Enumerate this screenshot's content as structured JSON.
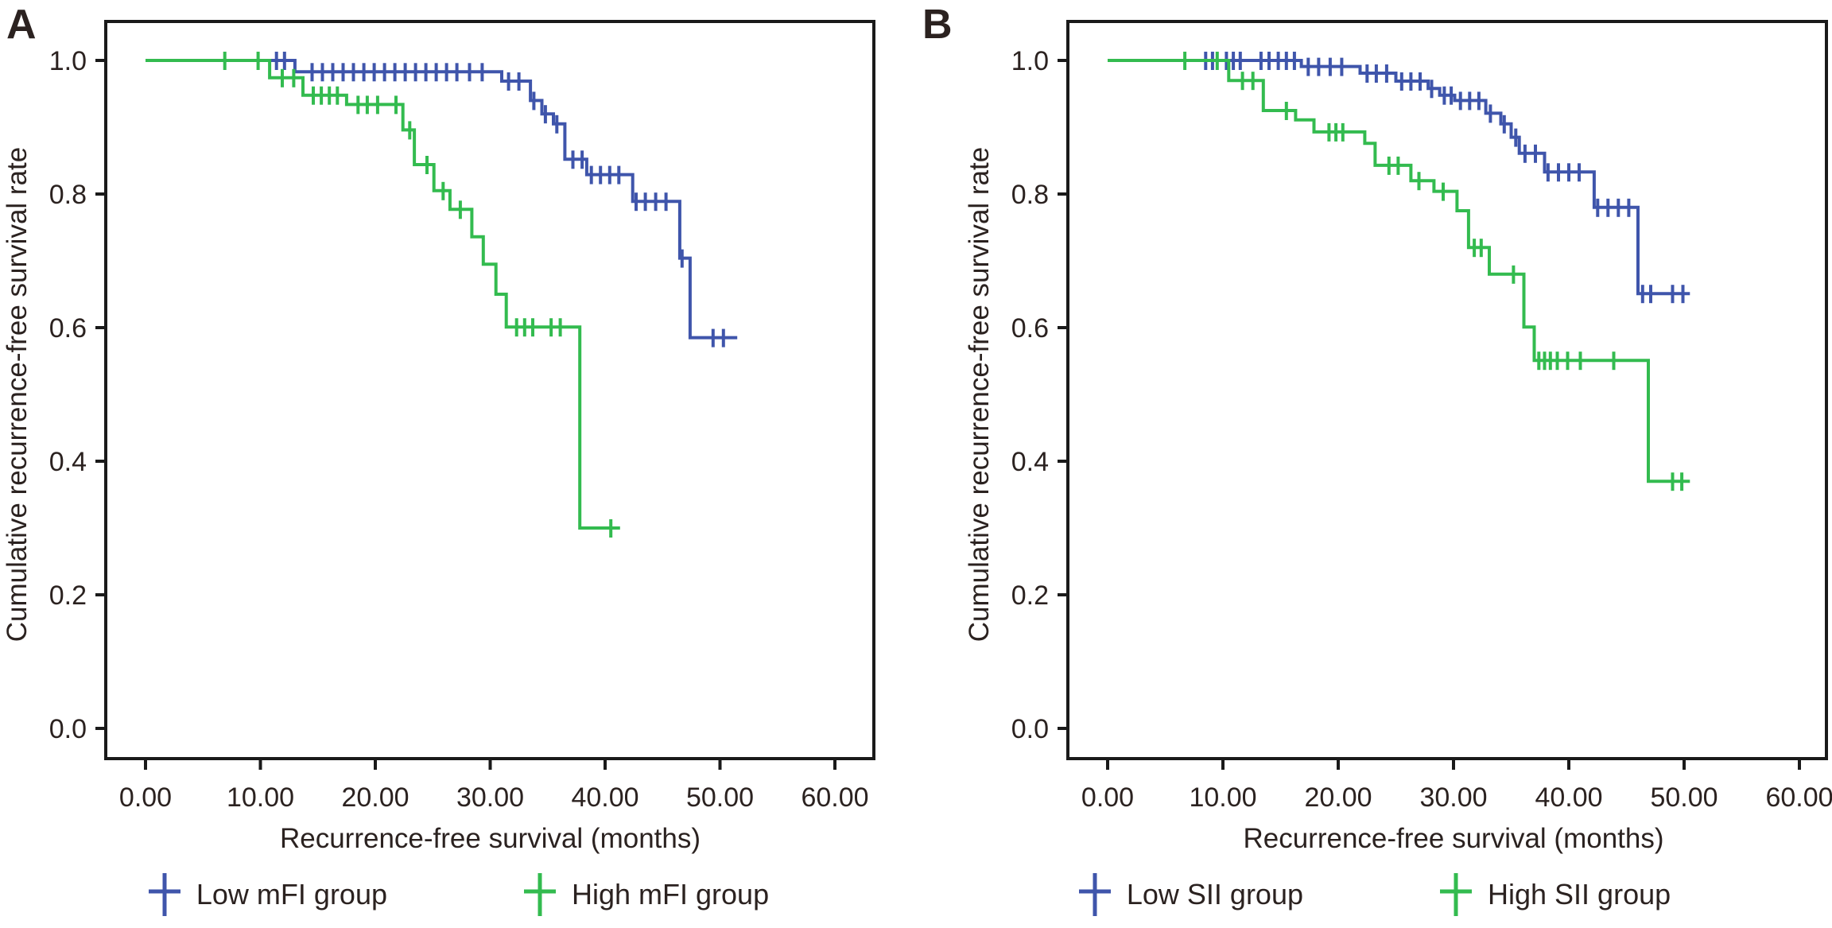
{
  "figure": {
    "background": "#FFFFFF",
    "panel_letters": [
      "A",
      "B"
    ]
  },
  "colors": {
    "blue": "#3F55AB",
    "green": "#33BB4F",
    "axis": "#1A1A1A",
    "text": "#2B2220"
  },
  "chart_data": [
    {
      "type": "line",
      "subtype": "kaplan-meier-step",
      "panel_label": "A",
      "title": "",
      "xlabel": "Recurrence-free survival (months)",
      "ylabel": "Cumulative recurrence-free survival rate",
      "xlim": [
        -3.5,
        63.5
      ],
      "ylim": [
        -0.09,
        1.1
      ],
      "grid": false,
      "legend_position": "bottom",
      "xticks": {
        "values": [
          0,
          10,
          20,
          30,
          40,
          50,
          60
        ],
        "labels": [
          "0.00",
          "10.00",
          "20.00",
          "30.00",
          "40.00",
          "50.00",
          "60.00"
        ]
      },
      "yticks": {
        "values": [
          1.0,
          0.8,
          0.6,
          0.4,
          0.2,
          0.0
        ],
        "labels": [
          "1.0",
          "0.8",
          "0.6",
          "0.4",
          "0.2",
          "0.0"
        ]
      },
      "series": [
        {
          "name": "Low mFI group",
          "color": "#3F55AB",
          "start": [
            0,
            1.0
          ],
          "end_time": 51.5,
          "steps": [
            [
              13.0,
              0.983
            ],
            [
              31.0,
              0.969
            ],
            [
              33.5,
              0.94
            ],
            [
              34.5,
              0.92
            ],
            [
              35.5,
              0.905
            ],
            [
              36.5,
              0.852
            ],
            [
              38.4,
              0.829
            ],
            [
              42.4,
              0.789
            ],
            [
              46.5,
              0.704
            ],
            [
              47.4,
              0.585
            ]
          ],
          "censors": [
            [
              11.4,
              1.0
            ],
            [
              12.1,
              1.0
            ],
            [
              14.5,
              0.983
            ],
            [
              15.4,
              0.983
            ],
            [
              16.3,
              0.983
            ],
            [
              17.2,
              0.983
            ],
            [
              18.1,
              0.983
            ],
            [
              19.0,
              0.983
            ],
            [
              19.9,
              0.983
            ],
            [
              20.8,
              0.983
            ],
            [
              21.7,
              0.983
            ],
            [
              22.6,
              0.983
            ],
            [
              23.5,
              0.983
            ],
            [
              24.4,
              0.983
            ],
            [
              25.3,
              0.983
            ],
            [
              26.2,
              0.983
            ],
            [
              27.1,
              0.983
            ],
            [
              28.2,
              0.983
            ],
            [
              29.3,
              0.983
            ],
            [
              31.6,
              0.969
            ],
            [
              32.5,
              0.969
            ],
            [
              33.8,
              0.94
            ],
            [
              34.8,
              0.92
            ],
            [
              35.8,
              0.905
            ],
            [
              37.2,
              0.852
            ],
            [
              38.0,
              0.852
            ],
            [
              38.8,
              0.829
            ],
            [
              39.6,
              0.829
            ],
            [
              40.4,
              0.829
            ],
            [
              41.2,
              0.829
            ],
            [
              42.7,
              0.789
            ],
            [
              43.5,
              0.789
            ],
            [
              44.4,
              0.789
            ],
            [
              45.3,
              0.789
            ],
            [
              46.7,
              0.704
            ],
            [
              49.4,
              0.585
            ],
            [
              50.3,
              0.585
            ]
          ]
        },
        {
          "name": "High mFI group",
          "color": "#33BB4F",
          "start": [
            0,
            1.0
          ],
          "end_time": 41.3,
          "steps": [
            [
              10.8,
              0.974
            ],
            [
              13.7,
              0.948
            ],
            [
              17.5,
              0.934
            ],
            [
              22.4,
              0.896
            ],
            [
              23.4,
              0.844
            ],
            [
              25.1,
              0.805
            ],
            [
              26.5,
              0.777
            ],
            [
              28.4,
              0.736
            ],
            [
              29.4,
              0.695
            ],
            [
              30.5,
              0.65
            ],
            [
              31.4,
              0.601
            ],
            [
              37.8,
              0.3
            ]
          ],
          "censors": [
            [
              6.9,
              1.0
            ],
            [
              9.8,
              1.0
            ],
            [
              11.9,
              0.974
            ],
            [
              12.9,
              0.974
            ],
            [
              14.6,
              0.948
            ],
            [
              15.3,
              0.948
            ],
            [
              16.0,
              0.948
            ],
            [
              16.7,
              0.948
            ],
            [
              18.5,
              0.934
            ],
            [
              19.3,
              0.934
            ],
            [
              20.2,
              0.934
            ],
            [
              21.8,
              0.934
            ],
            [
              23.0,
              0.896
            ],
            [
              24.5,
              0.844
            ],
            [
              25.9,
              0.805
            ],
            [
              27.4,
              0.777
            ],
            [
              32.3,
              0.601
            ],
            [
              33.0,
              0.601
            ],
            [
              33.7,
              0.601
            ],
            [
              35.3,
              0.601
            ],
            [
              36.1,
              0.601
            ],
            [
              40.5,
              0.3
            ]
          ]
        }
      ]
    },
    {
      "type": "line",
      "subtype": "kaplan-meier-step",
      "panel_label": "B",
      "title": "",
      "xlabel": "Recurrence-free survival (months)",
      "ylabel": "Cumulative recurrence-free survival rate",
      "xlim": [
        -3.5,
        63.5
      ],
      "ylim": [
        -0.09,
        1.1
      ],
      "grid": false,
      "legend_position": "bottom",
      "xticks": {
        "values": [
          0,
          10,
          20,
          30,
          40,
          50,
          60
        ],
        "labels": [
          "0.00",
          "10.00",
          "20.00",
          "30.00",
          "40.00",
          "50.00",
          "60.00"
        ]
      },
      "yticks": {
        "values": [
          1.0,
          0.8,
          0.6,
          0.4,
          0.2,
          0.0
        ],
        "labels": [
          "1.0",
          "0.8",
          "0.6",
          "0.4",
          "0.2",
          "0.0"
        ]
      },
      "series": [
        {
          "name": "Low SII group",
          "color": "#3F55AB",
          "start": [
            0,
            1.0
          ],
          "end_time": 50.5,
          "steps": [
            [
              16.8,
              0.991
            ],
            [
              21.9,
              0.981
            ],
            [
              25.0,
              0.969
            ],
            [
              27.8,
              0.958
            ],
            [
              28.8,
              0.948
            ],
            [
              30.1,
              0.94
            ],
            [
              32.8,
              0.921
            ],
            [
              34.1,
              0.905
            ],
            [
              35.0,
              0.885
            ],
            [
              35.7,
              0.861
            ],
            [
              37.9,
              0.833
            ],
            [
              42.2,
              0.78
            ],
            [
              46.0,
              0.651
            ]
          ],
          "censors": [
            [
              8.5,
              1.0
            ],
            [
              9.1,
              1.0
            ],
            [
              10.3,
              1.0
            ],
            [
              10.9,
              1.0
            ],
            [
              11.5,
              1.0
            ],
            [
              13.3,
              1.0
            ],
            [
              14.0,
              1.0
            ],
            [
              14.8,
              1.0
            ],
            [
              15.5,
              1.0
            ],
            [
              16.2,
              1.0
            ],
            [
              17.4,
              0.991
            ],
            [
              18.3,
              0.991
            ],
            [
              19.3,
              0.991
            ],
            [
              20.3,
              0.991
            ],
            [
              22.5,
              0.981
            ],
            [
              23.3,
              0.981
            ],
            [
              24.2,
              0.981
            ],
            [
              25.5,
              0.969
            ],
            [
              26.3,
              0.969
            ],
            [
              27.1,
              0.969
            ],
            [
              28.1,
              0.958
            ],
            [
              29.2,
              0.948
            ],
            [
              29.8,
              0.948
            ],
            [
              30.6,
              0.94
            ],
            [
              31.4,
              0.94
            ],
            [
              32.2,
              0.94
            ],
            [
              33.2,
              0.921
            ],
            [
              34.4,
              0.905
            ],
            [
              35.4,
              0.885
            ],
            [
              36.2,
              0.861
            ],
            [
              37.1,
              0.861
            ],
            [
              38.2,
              0.833
            ],
            [
              39.1,
              0.833
            ],
            [
              40.0,
              0.833
            ],
            [
              40.9,
              0.833
            ],
            [
              42.5,
              0.78
            ],
            [
              43.4,
              0.78
            ],
            [
              44.3,
              0.78
            ],
            [
              45.2,
              0.78
            ],
            [
              46.4,
              0.651
            ],
            [
              47.1,
              0.651
            ],
            [
              49.0,
              0.651
            ],
            [
              49.9,
              0.651
            ]
          ]
        },
        {
          "name": "High SII group",
          "color": "#33BB4F",
          "start": [
            0,
            1.0
          ],
          "end_time": 50.5,
          "steps": [
            [
              10.5,
              0.97
            ],
            [
              13.5,
              0.925
            ],
            [
              16.3,
              0.911
            ],
            [
              17.9,
              0.893
            ],
            [
              22.3,
              0.876
            ],
            [
              23.2,
              0.843
            ],
            [
              26.3,
              0.82
            ],
            [
              28.3,
              0.804
            ],
            [
              30.3,
              0.775
            ],
            [
              31.3,
              0.72
            ],
            [
              33.1,
              0.68
            ],
            [
              36.1,
              0.601
            ],
            [
              37.0,
              0.551
            ],
            [
              46.9,
              0.37
            ]
          ],
          "censors": [
            [
              6.7,
              1.0
            ],
            [
              9.5,
              1.0
            ],
            [
              11.7,
              0.97
            ],
            [
              12.6,
              0.97
            ],
            [
              15.5,
              0.925
            ],
            [
              19.2,
              0.893
            ],
            [
              19.8,
              0.893
            ],
            [
              20.4,
              0.893
            ],
            [
              24.4,
              0.843
            ],
            [
              25.2,
              0.843
            ],
            [
              27.0,
              0.82
            ],
            [
              29.1,
              0.804
            ],
            [
              31.8,
              0.72
            ],
            [
              32.4,
              0.72
            ],
            [
              35.2,
              0.68
            ],
            [
              37.4,
              0.551
            ],
            [
              37.9,
              0.551
            ],
            [
              38.4,
              0.551
            ],
            [
              39.0,
              0.551
            ],
            [
              39.9,
              0.551
            ],
            [
              41.0,
              0.551
            ],
            [
              43.9,
              0.551
            ],
            [
              49.0,
              0.37
            ],
            [
              49.8,
              0.37
            ]
          ]
        }
      ]
    }
  ]
}
